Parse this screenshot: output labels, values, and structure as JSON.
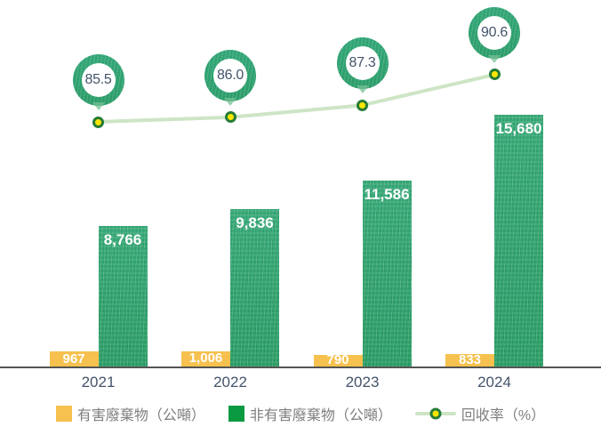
{
  "chart_data": {
    "type": "bar",
    "subtype": "grouped-bar-with-line",
    "title": "",
    "categories": [
      "2021",
      "2022",
      "2023",
      "2024"
    ],
    "series": [
      {
        "name": "有害廢棄物（公噸）",
        "type": "bar",
        "values": [
          967,
          1006,
          790,
          833
        ],
        "labels": [
          "967",
          "1,006",
          "790",
          "833"
        ],
        "color": "#F6C14E"
      },
      {
        "name": "非有害廢棄物（公噸）",
        "type": "bar",
        "values": [
          8766,
          9836,
          11586,
          15680
        ],
        "labels": [
          "8,766",
          "9,836",
          "11,586",
          "15,680"
        ],
        "color": "#31A674"
      },
      {
        "name": "回收率（%）",
        "type": "line",
        "values": [
          85.5,
          86.0,
          87.3,
          90.6
        ],
        "labels": [
          "85.5",
          "86.0",
          "87.3",
          "90.6"
        ],
        "line_color": "#CDE5C5",
        "marker_fill": "#FFE600",
        "marker_border": "#267C38",
        "badge_ring_color": "#31A674",
        "badge_text_color": "#44546A"
      }
    ],
    "ylim_bars": [
      0,
      16500
    ],
    "ylim_line_visible_range": [
      84,
      91
    ],
    "grid": false,
    "y_axis_labels": false,
    "legend_position": "bottom"
  },
  "legend": {
    "items": [
      {
        "swatch": "square",
        "color": "#F6C14E",
        "label": "有害廢棄物（公噸）"
      },
      {
        "swatch": "square",
        "color": "#0A9A41",
        "label": "非有害廢棄物（公噸）"
      },
      {
        "swatch": "line-marker",
        "color": "#CDE5C5",
        "label": "回收率（%）"
      }
    ]
  },
  "colors": {
    "axis_line": "#545454",
    "year_label_text": "#44546A",
    "legend_text": "#7F7F7F",
    "bar_value_text": "#FFFFFF",
    "background": "#FFFFFF"
  }
}
